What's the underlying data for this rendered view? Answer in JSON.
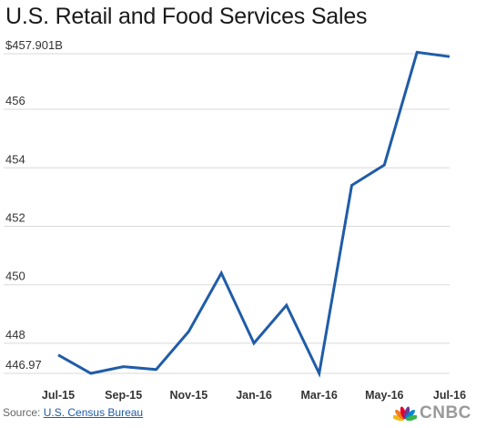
{
  "chart_data": {
    "type": "line",
    "title": "U.S. Retail and Food Services Sales",
    "xlabel": "",
    "ylabel": "",
    "x_tick_labels": [
      "Jul-15",
      "Sep-15",
      "Nov-15",
      "Jan-16",
      "Mar-16",
      "May-16",
      "Jul-16"
    ],
    "y_tick_labels": [
      "$457.901B",
      "456",
      "454",
      "452",
      "450",
      "448",
      "446.97"
    ],
    "y_tick_values": [
      457.901,
      456,
      454,
      452,
      450,
      448,
      446.97
    ],
    "ylim": [
      446.97,
      457.901
    ],
    "grid": "horizontal",
    "series": [
      {
        "color": "#1f5ca8",
        "x": [
          "Jul-15",
          "Aug-15",
          "Sep-15",
          "Oct-15",
          "Nov-15",
          "Dec-15",
          "Jan-16",
          "Feb-16",
          "Mar-16",
          "Apr-16",
          "May-16",
          "Jun-16",
          "Jul-16"
        ],
        "values": [
          447.6,
          446.97,
          447.2,
          447.1,
          448.4,
          450.4,
          448.0,
          449.3,
          446.97,
          453.4,
          454.1,
          457.95,
          457.8
        ]
      }
    ]
  },
  "source": {
    "label": "Source: ",
    "link_text": "U.S. Census Bureau"
  },
  "logo": {
    "text": "CNBC",
    "icon": "peacock-icon",
    "colors": [
      "#f4b81c",
      "#f47b20",
      "#e4002b",
      "#6b3a96",
      "#0089d0",
      "#3ab54a"
    ]
  }
}
